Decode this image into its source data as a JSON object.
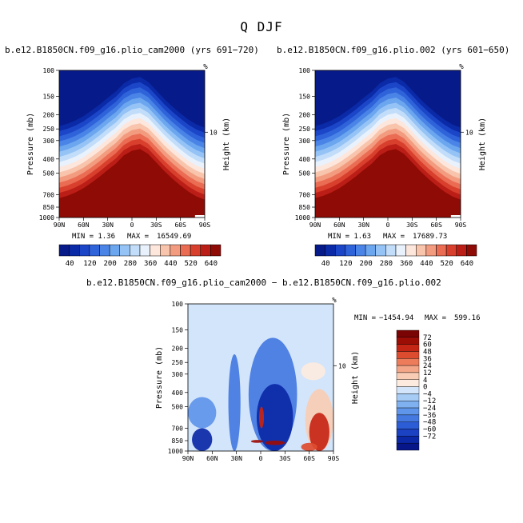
{
  "figure": {
    "title": "Q DJF"
  },
  "color_scale": {
    "top": {
      "colors": [
        "#071a8a",
        "#0a2aa8",
        "#1c46c8",
        "#2f63da",
        "#4a84e6",
        "#6ba6ef",
        "#95c3f6",
        "#c2ddf9",
        "#e9f2fc",
        "#fde6dc",
        "#f8c4ac",
        "#f39b7f",
        "#ea6c53",
        "#d8402d",
        "#bb1e16",
        "#8f0b05"
      ],
      "labels": [
        "40",
        "120",
        "200",
        "280",
        "360",
        "440",
        "520",
        "640"
      ]
    },
    "diff": {
      "colors": [
        "#07178a",
        "#0b28a6",
        "#1b42c3",
        "#2c5dd6",
        "#4479e2",
        "#5f95ea",
        "#7fb0f0",
        "#a6cbf5",
        "#d3e5fa",
        "#fdebe0",
        "#f9cdb5",
        "#f4a688",
        "#ec7c5a",
        "#de4c30",
        "#c52515",
        "#9c0d06",
        "#7a0403"
      ],
      "labels": [
        "72",
        "60",
        "48",
        "36",
        "24",
        "12",
        "4",
        "0",
        "−4",
        "−12",
        "−24",
        "−36",
        "−48",
        "−60",
        "−72"
      ]
    }
  },
  "chart_data": [
    {
      "type": "contour",
      "title": "b.e12.B1850CN.f09_g16.plio_cam2000 (yrs 691−720)",
      "variable": "Q",
      "season": "DJF",
      "x_tick_labels": [
        "90N",
        "60N",
        "30N",
        "0",
        "30S",
        "60S",
        "90S"
      ],
      "y_tick_labels": [
        "100",
        "150",
        "200",
        "250",
        "300",
        "400",
        "500",
        "700",
        "850",
        "1000"
      ],
      "ylabel": "Pressure (mb)",
      "right_axis_label": "Height (km)",
      "right_tick_labels": [
        "10"
      ],
      "top_right_mark": "%",
      "min_label": "MIN =",
      "min_value": "1.36",
      "max_label": "MAX =",
      "max_value": "16549.69",
      "profile": {
        "lat": [
          90,
          80,
          70,
          60,
          50,
          40,
          30,
          20,
          10,
          0,
          -10,
          -20,
          -30,
          -40,
          -50,
          -60,
          -70,
          -80,
          -90
        ],
        "moist_top_mb": [
          420,
          405,
          385,
          360,
          330,
          300,
          270,
          245,
          215,
          200,
          195,
          210,
          240,
          275,
          310,
          345,
          380,
          410,
          430
        ]
      }
    },
    {
      "type": "contour",
      "title": "b.e12.B1850CN.f09_g16.plio.002 (yrs 601−650)",
      "variable": "Q",
      "season": "DJF",
      "x_tick_labels": [
        "90N",
        "60N",
        "30N",
        "0",
        "30S",
        "60S",
        "90S"
      ],
      "y_tick_labels": [
        "100",
        "150",
        "200",
        "250",
        "300",
        "400",
        "500",
        "700",
        "850",
        "1000"
      ],
      "ylabel": "Pressure (mb)",
      "right_axis_label": "Height (km)",
      "right_tick_labels": [
        "10"
      ],
      "top_right_mark": "%",
      "min_label": "MIN =",
      "min_value": "1.63",
      "max_label": "MAX =",
      "max_value": "17689.73",
      "profile": {
        "lat": [
          90,
          80,
          70,
          60,
          50,
          40,
          30,
          20,
          10,
          0,
          -10,
          -20,
          -30,
          -40,
          -50,
          -60,
          -70,
          -80,
          -90
        ],
        "moist_top_mb": [
          420,
          405,
          385,
          360,
          330,
          300,
          270,
          245,
          215,
          200,
          195,
          210,
          240,
          275,
          310,
          345,
          380,
          410,
          430
        ]
      }
    },
    {
      "type": "contour",
      "title": "b.e12.B1850CN.f09_g16.plio_cam2000 − b.e12.B1850CN.f09_g16.plio.002",
      "x_tick_labels": [
        "90N",
        "60N",
        "30N",
        "0",
        "30S",
        "60S",
        "90S"
      ],
      "y_tick_labels": [
        "100",
        "150",
        "200",
        "250",
        "300",
        "400",
        "500",
        "700",
        "850",
        "1000"
      ],
      "ylabel": "Pressure (mb)",
      "right_axis_label": "Height (km)",
      "right_tick_labels": [
        "10"
      ],
      "top_right_mark": "%",
      "min_label": "MIN =",
      "min_value": "−1454.94",
      "max_label": "MAX =",
      "max_value": "599.16",
      "anomalies": [
        {
          "lat_from": 90,
          "lat_to": 70,
          "p_from": 230,
          "p_to": 330,
          "value": 2
        },
        {
          "lat_from": 90,
          "lat_to": 55,
          "p_from": 430,
          "p_to": 700,
          "value": -20
        },
        {
          "lat_from": 85,
          "lat_to": 60,
          "p_from": 700,
          "p_to": 1000,
          "value": -72
        },
        {
          "lat_from": 40,
          "lat_to": 25,
          "p_from": 220,
          "p_to": 1000,
          "value": -30
        },
        {
          "lat_from": 15,
          "lat_to": -45,
          "p_from": 170,
          "p_to": 1000,
          "value": -30
        },
        {
          "lat_from": 5,
          "lat_to": -40,
          "p_from": 350,
          "p_to": 1000,
          "value": -72
        },
        {
          "lat_from": 2,
          "lat_to": -4,
          "p_from": 500,
          "p_to": 700,
          "value": 60
        },
        {
          "lat_from": -50,
          "lat_to": -80,
          "p_from": 250,
          "p_to": 330,
          "value": 4
        },
        {
          "lat_from": -55,
          "lat_to": -90,
          "p_from": 380,
          "p_to": 1000,
          "value": 12
        },
        {
          "lat_from": -60,
          "lat_to": -85,
          "p_from": 550,
          "p_to": 1000,
          "value": 60
        },
        {
          "lat_from": 12,
          "lat_to": -3,
          "p_from": 840,
          "p_to": 880,
          "value": 72
        },
        {
          "lat_from": -5,
          "lat_to": -30,
          "p_from": 850,
          "p_to": 910,
          "value": 72
        },
        {
          "lat_from": -50,
          "lat_to": -70,
          "p_from": 880,
          "p_to": 1000,
          "value": 48
        }
      ]
    }
  ]
}
